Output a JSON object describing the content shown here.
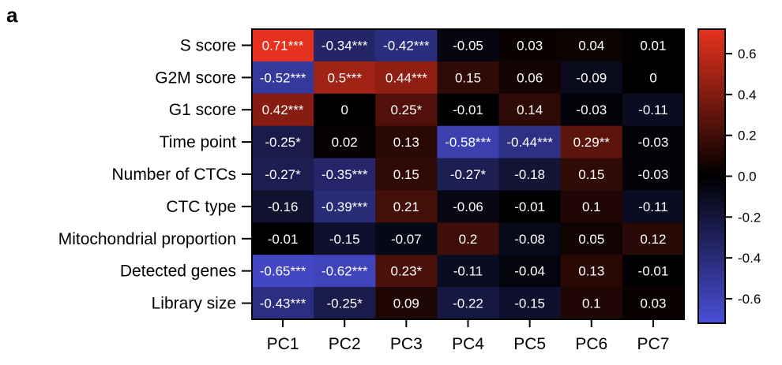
{
  "panel_label": "a",
  "chart_data": {
    "type": "heatmap",
    "title": "",
    "xlabel": "",
    "ylabel": "",
    "columns": [
      "PC1",
      "PC2",
      "PC3",
      "PC4",
      "PC5",
      "PC6",
      "PC7"
    ],
    "rows": [
      "S score",
      "G2M score",
      "G1 score",
      "Time point",
      "Number of CTCs",
      "CTC type",
      "Mitochondrial proportion",
      "Detected genes",
      "Library size"
    ],
    "values": [
      [
        0.71,
        -0.34,
        -0.42,
        -0.05,
        0.03,
        0.04,
        0.01
      ],
      [
        -0.52,
        0.5,
        0.44,
        0.15,
        0.06,
        -0.09,
        0
      ],
      [
        0.42,
        0,
        0.25,
        -0.01,
        0.14,
        -0.03,
        -0.11
      ],
      [
        -0.25,
        0.02,
        0.13,
        -0.58,
        -0.44,
        0.29,
        -0.03
      ],
      [
        -0.27,
        -0.35,
        0.15,
        -0.27,
        -0.18,
        0.15,
        -0.03
      ],
      [
        -0.16,
        -0.39,
        0.21,
        -0.06,
        -0.01,
        0.1,
        -0.11
      ],
      [
        -0.01,
        -0.15,
        -0.07,
        0.2,
        -0.08,
        0.05,
        0.12
      ],
      [
        -0.65,
        -0.62,
        0.23,
        -0.11,
        -0.04,
        0.13,
        -0.01
      ],
      [
        -0.43,
        -0.25,
        0.09,
        -0.22,
        -0.15,
        0.1,
        0.03
      ]
    ],
    "labels": [
      [
        "0.71***",
        "-0.34***",
        "-0.42***",
        "-0.05",
        "0.03",
        "0.04",
        "0.01"
      ],
      [
        "-0.52***",
        "0.5***",
        "0.44***",
        "0.15",
        "0.06",
        "-0.09",
        "0"
      ],
      [
        "0.42***",
        "0",
        "0.25*",
        "-0.01",
        "0.14",
        "-0.03",
        "-0.11"
      ],
      [
        "-0.25*",
        "0.02",
        "0.13",
        "-0.58***",
        "-0.44***",
        "0.29**",
        "-0.03"
      ],
      [
        "-0.27*",
        "-0.35***",
        "0.15",
        "-0.27*",
        "-0.18",
        "0.15",
        "-0.03"
      ],
      [
        "-0.16",
        "-0.39***",
        "0.21",
        "-0.06",
        "-0.01",
        "0.1",
        "-0.11"
      ],
      [
        "-0.01",
        "-0.15",
        "-0.07",
        "0.2",
        "-0.08",
        "0.05",
        "0.12"
      ],
      [
        "-0.65***",
        "-0.62***",
        "0.23*",
        "-0.11",
        "-0.04",
        "0.13",
        "-0.01"
      ],
      [
        "-0.43***",
        "-0.25*",
        "0.09",
        "-0.22",
        "-0.15",
        "0.1",
        "0.03"
      ]
    ],
    "colorbar": {
      "range": [
        -0.72,
        0.72
      ],
      "ticks": [
        0.6,
        0.4,
        0.2,
        0.0,
        -0.2,
        -0.4,
        -0.6
      ],
      "tick_labels": [
        "0.6",
        "0.4",
        "0.2",
        "0.0",
        "-0.2",
        "-0.4",
        "-0.6"
      ],
      "colors": {
        "negative": "#4a4fd8",
        "zero": "#000000",
        "positive": "#e8321e"
      }
    },
    "grid": false,
    "legend": "right"
  }
}
